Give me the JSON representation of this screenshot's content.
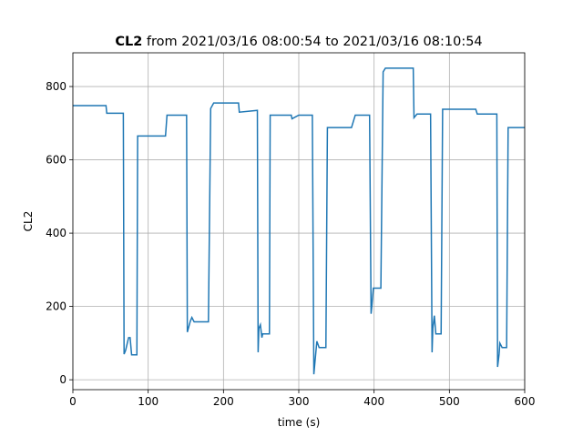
{
  "chart_data": {
    "type": "line",
    "title_parts": [
      "CL2",
      "from 2021/03/16 08:00:54 to 2021/03/16 08:10:54"
    ],
    "x_label": "time (s)",
    "y_label": "CL2",
    "x": [
      0,
      44,
      45,
      67,
      68,
      70,
      74,
      76,
      78,
      85,
      86,
      123,
      125,
      151,
      152,
      156,
      158,
      161,
      180,
      183,
      187,
      220,
      221,
      245,
      246,
      247,
      249,
      251,
      252,
      261,
      262,
      290,
      291,
      300,
      318,
      320,
      322,
      324,
      327,
      336,
      338,
      370,
      375,
      394,
      396,
      397,
      399,
      409,
      412,
      415,
      452,
      453,
      457,
      475,
      477,
      478,
      480,
      482,
      489,
      491,
      535,
      537,
      563,
      564,
      566,
      567,
      570,
      576,
      578,
      600
    ],
    "series": [
      {
        "name": "CL2",
        "color": "#1f77b4",
        "values": [
          748,
          748,
          727,
          727,
          70,
          80,
          115,
          115,
          68,
          68,
          665,
          665,
          722,
          722,
          130,
          160,
          170,
          158,
          158,
          740,
          755,
          755,
          730,
          735,
          75,
          140,
          150,
          115,
          125,
          125,
          722,
          722,
          712,
          722,
          722,
          15,
          60,
          105,
          88,
          88,
          688,
          688,
          722,
          722,
          180,
          200,
          250,
          250,
          840,
          850,
          850,
          715,
          725,
          725,
          75,
          140,
          175,
          125,
          125,
          738,
          738,
          725,
          725,
          35,
          70,
          100,
          88,
          88,
          688,
          688
        ]
      }
    ],
    "xlim": [
      0,
      600
    ],
    "ylim": [
      -27,
      892
    ],
    "xticks": [
      0,
      100,
      200,
      300,
      400,
      500,
      600
    ],
    "yticks": [
      0,
      200,
      400,
      600,
      800
    ],
    "grid": true
  }
}
